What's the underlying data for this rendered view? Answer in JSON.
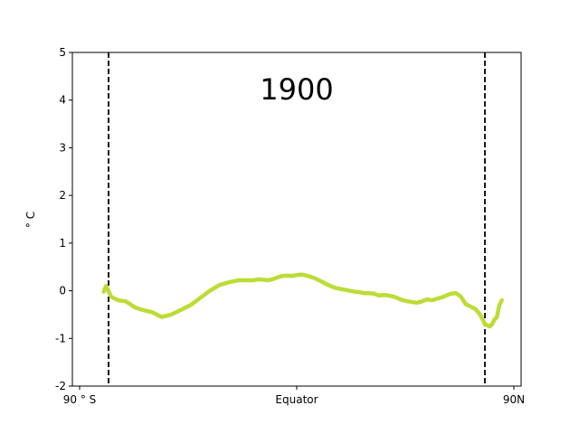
{
  "chart_data": {
    "type": "line",
    "title": "",
    "annotation": "1900",
    "ylabel": "$^\\circ$C",
    "ylabel_display": "° C",
    "xlabel": "",
    "xlim": [
      -93,
      93
    ],
    "ylim": [
      -2,
      5
    ],
    "yticks": [
      -2,
      -1,
      0,
      1,
      2,
      3,
      4,
      5
    ],
    "xticks": [
      {
        "value": -90,
        "label": "90$^\\circ$S",
        "display": "90 ° S"
      },
      {
        "value": 0,
        "label": "Equator",
        "display": "Equator"
      },
      {
        "value": 90,
        "label": "90N",
        "display": "90N"
      }
    ],
    "reference_lines": [
      {
        "x": -78,
        "style": "dashed",
        "color": "#000000"
      },
      {
        "x": 78,
        "style": "dashed",
        "color": "#000000"
      }
    ],
    "grid": false,
    "series": [
      {
        "color": "#bcdc36",
        "x": [
          -80,
          -79.5,
          -79,
          -77,
          -76,
          -74,
          -71,
          -70,
          -67,
          -64,
          -60,
          -58,
          -56,
          -52,
          -48,
          -44,
          -40,
          -36,
          -32,
          -28,
          -24,
          -20,
          -18,
          -16,
          -14,
          -12,
          -10,
          -8,
          -6,
          -4,
          -2,
          0,
          2,
          4,
          6,
          8,
          10,
          12,
          14,
          16,
          18,
          20,
          22,
          24,
          26,
          28,
          30,
          32,
          34,
          36,
          38,
          40,
          42,
          44,
          46,
          48,
          50,
          52,
          54,
          56,
          58,
          60,
          62,
          64,
          66,
          68,
          70,
          72,
          74,
          76,
          78,
          80,
          81,
          82,
          83,
          84,
          85
        ],
        "y": [
          -0.02,
          0.05,
          0.1,
          -0.12,
          -0.15,
          -0.2,
          -0.22,
          -0.25,
          -0.35,
          -0.4,
          -0.45,
          -0.5,
          -0.55,
          -0.5,
          -0.4,
          -0.3,
          -0.15,
          0.0,
          0.12,
          0.18,
          0.22,
          0.22,
          0.22,
          0.24,
          0.23,
          0.22,
          0.24,
          0.28,
          0.31,
          0.32,
          0.31,
          0.33,
          0.34,
          0.32,
          0.29,
          0.25,
          0.2,
          0.15,
          0.1,
          0.06,
          0.04,
          0.02,
          0.0,
          -0.02,
          -0.03,
          -0.05,
          -0.05,
          -0.06,
          -0.1,
          -0.09,
          -0.1,
          -0.12,
          -0.16,
          -0.2,
          -0.22,
          -0.24,
          -0.25,
          -0.22,
          -0.18,
          -0.2,
          -0.17,
          -0.14,
          -0.1,
          -0.06,
          -0.05,
          -0.12,
          -0.28,
          -0.33,
          -0.38,
          -0.5,
          -0.7,
          -0.75,
          -0.7,
          -0.6,
          -0.55,
          -0.3,
          -0.2
        ]
      }
    ]
  }
}
